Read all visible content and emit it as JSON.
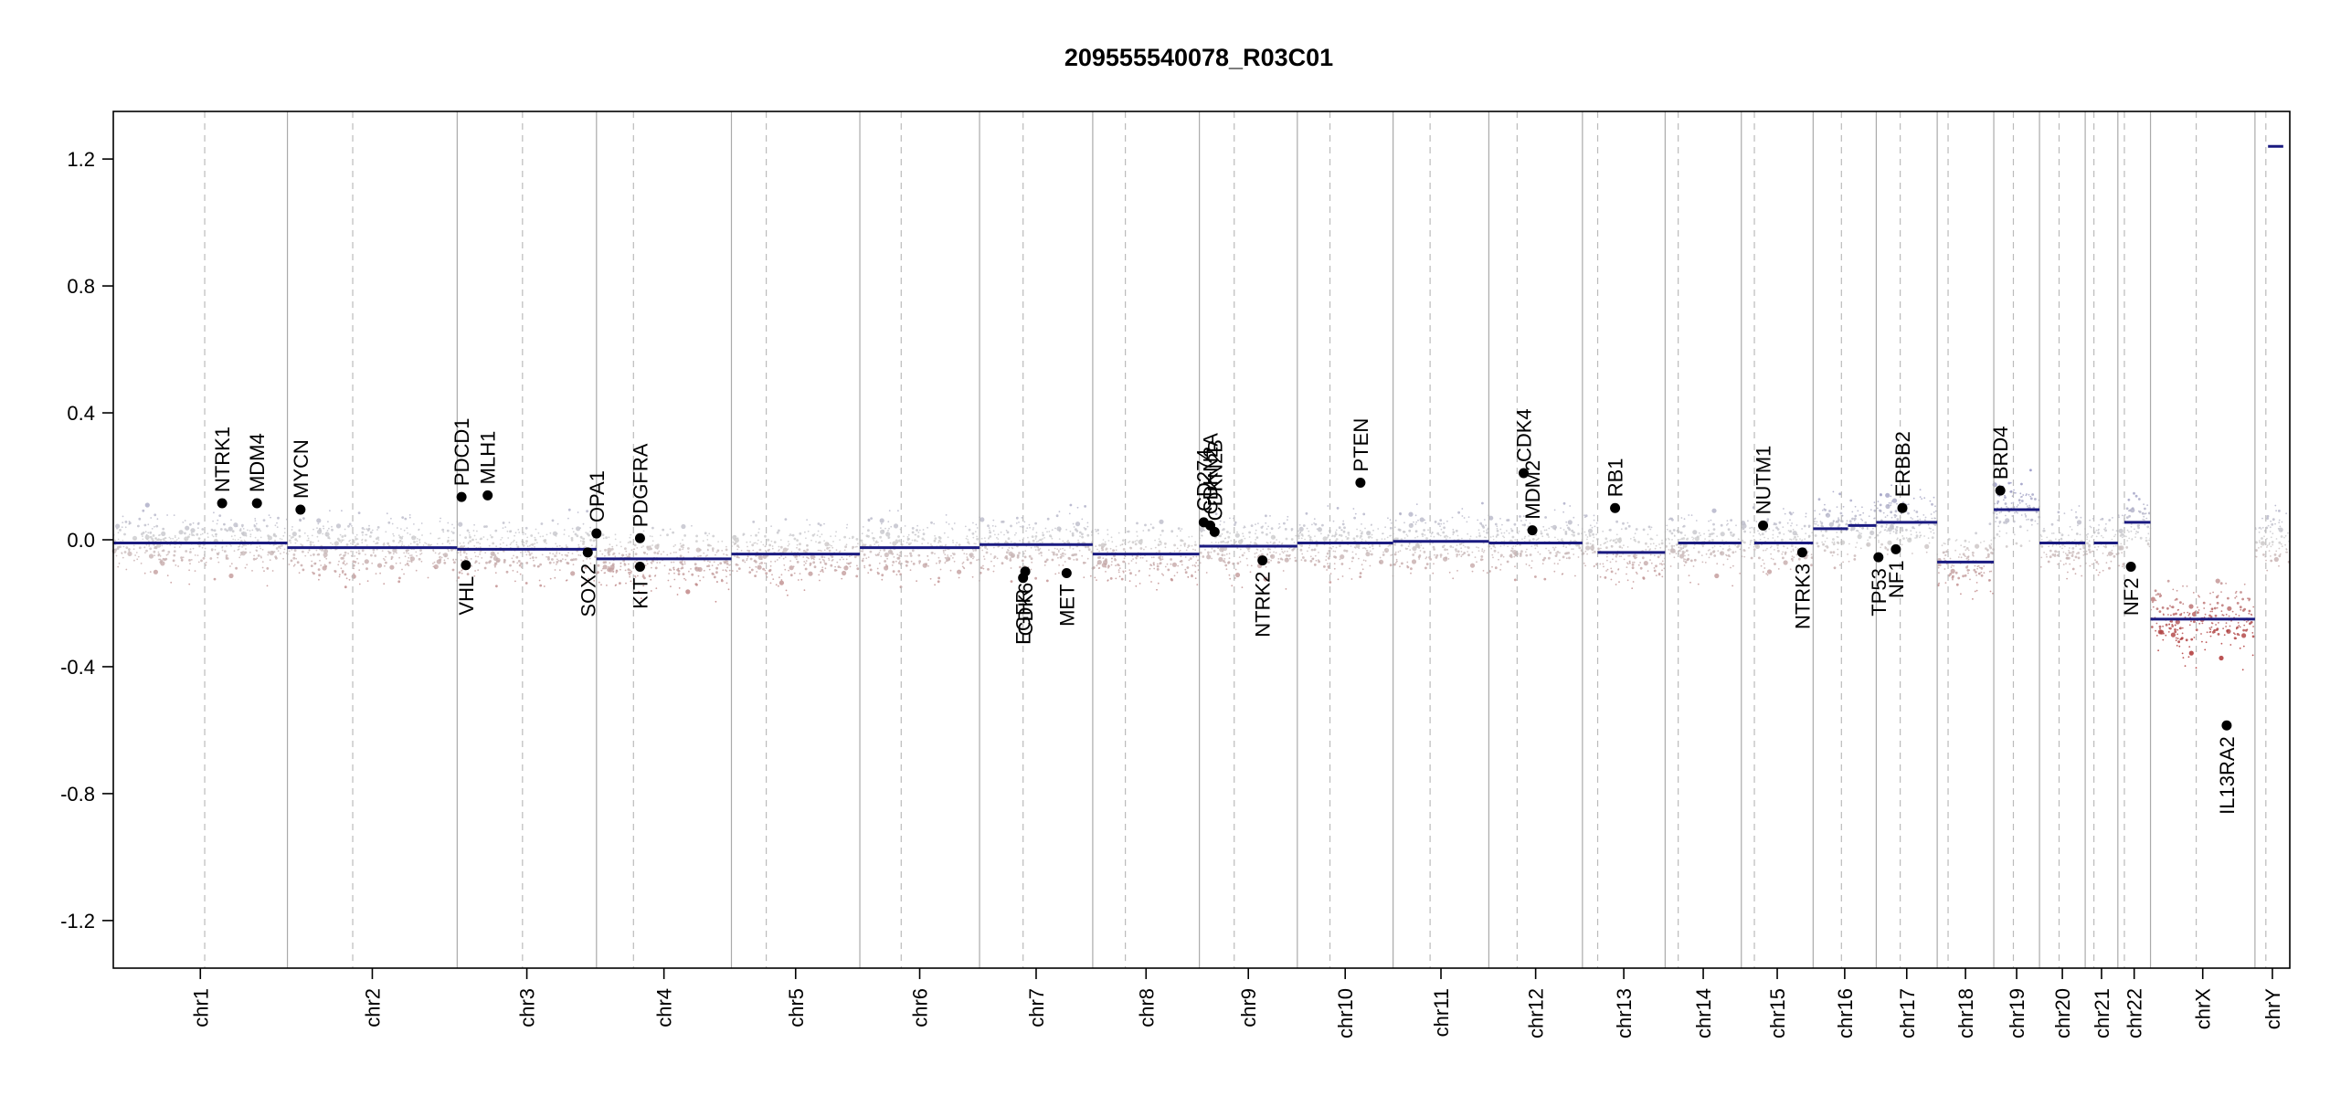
{
  "chart_data": {
    "type": "scatter",
    "title": "209555540078_R03C01",
    "xlabel": "",
    "ylabel": "",
    "ylim": [
      -1.35,
      1.35
    ],
    "y_ticks": [
      -1.2,
      -0.8,
      -0.4,
      0.0,
      0.4,
      0.8,
      1.2
    ],
    "y_tick_labels": [
      "-1.2",
      "-0.8",
      "-0.4",
      "0.0",
      "0.4",
      "0.8",
      "1.2"
    ],
    "grid": "vertical chromosome boundaries (solid) and centromeres (dashed)",
    "chromosomes": [
      {
        "name": "chr1",
        "start": 0.0,
        "end": 0.08,
        "centromere": 0.042,
        "segments": [
          {
            "x0": 0.0,
            "x1": 0.08,
            "y": -0.01
          }
        ]
      },
      {
        "name": "chr2",
        "start": 0.08,
        "end": 0.158,
        "centromere": 0.11,
        "segments": [
          {
            "x0": 0.08,
            "x1": 0.158,
            "y": -0.025
          }
        ]
      },
      {
        "name": "chr3",
        "start": 0.158,
        "end": 0.222,
        "centromere": 0.188,
        "segments": [
          {
            "x0": 0.158,
            "x1": 0.222,
            "y": -0.03
          }
        ]
      },
      {
        "name": "chr4",
        "start": 0.222,
        "end": 0.284,
        "centromere": 0.239,
        "segments": [
          {
            "x0": 0.222,
            "x1": 0.284,
            "y": -0.06
          }
        ]
      },
      {
        "name": "chr5",
        "start": 0.284,
        "end": 0.343,
        "centromere": 0.3,
        "segments": [
          {
            "x0": 0.284,
            "x1": 0.343,
            "y": -0.045
          }
        ]
      },
      {
        "name": "chr6",
        "start": 0.343,
        "end": 0.398,
        "centromere": 0.362,
        "segments": [
          {
            "x0": 0.343,
            "x1": 0.398,
            "y": -0.025
          }
        ]
      },
      {
        "name": "chr7",
        "start": 0.398,
        "end": 0.45,
        "centromere": 0.418,
        "segments": [
          {
            "x0": 0.398,
            "x1": 0.45,
            "y": -0.015
          }
        ]
      },
      {
        "name": "chr8",
        "start": 0.45,
        "end": 0.499,
        "centromere": 0.465,
        "segments": [
          {
            "x0": 0.45,
            "x1": 0.499,
            "y": -0.045
          }
        ]
      },
      {
        "name": "chr9",
        "start": 0.499,
        "end": 0.544,
        "centromere": 0.515,
        "segments": [
          {
            "x0": 0.499,
            "x1": 0.544,
            "y": -0.02
          }
        ]
      },
      {
        "name": "chr10",
        "start": 0.544,
        "end": 0.588,
        "centromere": 0.559,
        "segments": [
          {
            "x0": 0.544,
            "x1": 0.588,
            "y": -0.01
          }
        ]
      },
      {
        "name": "chr11",
        "start": 0.588,
        "end": 0.632,
        "centromere": 0.605,
        "segments": [
          {
            "x0": 0.588,
            "x1": 0.632,
            "y": -0.005
          }
        ]
      },
      {
        "name": "chr12",
        "start": 0.632,
        "end": 0.675,
        "centromere": 0.645,
        "segments": [
          {
            "x0": 0.632,
            "x1": 0.675,
            "y": -0.01
          }
        ]
      },
      {
        "name": "chr13",
        "start": 0.675,
        "end": 0.713,
        "centromere": 0.682,
        "segments": [
          {
            "x0": 0.682,
            "x1": 0.713,
            "y": -0.04
          }
        ]
      },
      {
        "name": "chr14",
        "start": 0.713,
        "end": 0.748,
        "centromere": 0.719,
        "segments": [
          {
            "x0": 0.719,
            "x1": 0.748,
            "y": -0.01
          }
        ]
      },
      {
        "name": "chr15",
        "start": 0.748,
        "end": 0.781,
        "centromere": 0.754,
        "segments": [
          {
            "x0": 0.754,
            "x1": 0.781,
            "y": -0.01
          }
        ]
      },
      {
        "name": "chr16",
        "start": 0.781,
        "end": 0.81,
        "centromere": 0.794,
        "segments": [
          {
            "x0": 0.781,
            "x1": 0.797,
            "y": 0.035
          },
          {
            "x0": 0.797,
            "x1": 0.81,
            "y": 0.045
          }
        ]
      },
      {
        "name": "chr17",
        "start": 0.81,
        "end": 0.838,
        "centromere": 0.821,
        "segments": [
          {
            "x0": 0.81,
            "x1": 0.838,
            "y": 0.055
          }
        ]
      },
      {
        "name": "chr18",
        "start": 0.838,
        "end": 0.864,
        "centromere": 0.843,
        "segments": [
          {
            "x0": 0.838,
            "x1": 0.864,
            "y": -0.07
          }
        ]
      },
      {
        "name": "chr19",
        "start": 0.864,
        "end": 0.885,
        "centromere": 0.873,
        "segments": [
          {
            "x0": 0.864,
            "x1": 0.885,
            "y": 0.095
          }
        ]
      },
      {
        "name": "chr20",
        "start": 0.885,
        "end": 0.906,
        "centromere": 0.894,
        "segments": [
          {
            "x0": 0.885,
            "x1": 0.906,
            "y": -0.01
          }
        ]
      },
      {
        "name": "chr21",
        "start": 0.906,
        "end": 0.921,
        "centromere": 0.91,
        "segments": [
          {
            "x0": 0.91,
            "x1": 0.921,
            "y": -0.01
          }
        ]
      },
      {
        "name": "chr22",
        "start": 0.921,
        "end": 0.936,
        "centromere": 0.924,
        "segments": [
          {
            "x0": 0.924,
            "x1": 0.936,
            "y": 0.055
          }
        ]
      },
      {
        "name": "chrX",
        "start": 0.936,
        "end": 0.984,
        "centromere": 0.957,
        "segments": [
          {
            "x0": 0.936,
            "x1": 0.984,
            "y": -0.25
          }
        ]
      },
      {
        "name": "chrY",
        "start": 0.984,
        "end": 1.0,
        "centromere": 0.989,
        "segments": [
          {
            "x0": 0.99,
            "x1": 0.997,
            "y": 1.24
          }
        ]
      }
    ],
    "genes": [
      {
        "name": "NTRK1",
        "x": 0.05,
        "y": 0.115
      },
      {
        "name": "MDM4",
        "x": 0.066,
        "y": 0.115
      },
      {
        "name": "MYCN",
        "x": 0.086,
        "y": 0.095
      },
      {
        "name": "PDCD1",
        "x": 0.16,
        "y": 0.135
      },
      {
        "name": "VHL",
        "x": 0.162,
        "y": -0.08
      },
      {
        "name": "MLH1",
        "x": 0.172,
        "y": 0.14
      },
      {
        "name": "SOX2",
        "x": 0.218,
        "y": -0.04
      },
      {
        "name": "OPA1",
        "x": 0.222,
        "y": 0.02
      },
      {
        "name": "PDGFRA",
        "x": 0.242,
        "y": 0.005
      },
      {
        "name": "KIT",
        "x": 0.242,
        "y": -0.085
      },
      {
        "name": "EGFR",
        "x": 0.418,
        "y": -0.12
      },
      {
        "name": "CDK6",
        "x": 0.419,
        "y": -0.1
      },
      {
        "name": "MET",
        "x": 0.438,
        "y": -0.105
      },
      {
        "name": "CD274",
        "x": 0.501,
        "y": 0.055
      },
      {
        "name": "CDKN2A",
        "x": 0.504,
        "y": 0.045
      },
      {
        "name": "CDKN2B",
        "x": 0.506,
        "y": 0.025
      },
      {
        "name": "NTRK2",
        "x": 0.528,
        "y": -0.065
      },
      {
        "name": "PTEN",
        "x": 0.573,
        "y": 0.18
      },
      {
        "name": "CDK4",
        "x": 0.648,
        "y": 0.21
      },
      {
        "name": "MDM2",
        "x": 0.652,
        "y": 0.03
      },
      {
        "name": "RB1",
        "x": 0.69,
        "y": 0.1
      },
      {
        "name": "NUTM1",
        "x": 0.758,
        "y": 0.045
      },
      {
        "name": "NTRK3",
        "x": 0.776,
        "y": -0.04
      },
      {
        "name": "TP53",
        "x": 0.811,
        "y": -0.055
      },
      {
        "name": "NF1",
        "x": 0.819,
        "y": -0.03
      },
      {
        "name": "ERBB2",
        "x": 0.822,
        "y": 0.1
      },
      {
        "name": "BRD4",
        "x": 0.867,
        "y": 0.155
      },
      {
        "name": "NF2",
        "x": 0.927,
        "y": -0.085
      },
      {
        "name": "IL13RA2",
        "x": 0.971,
        "y": -0.585
      }
    ],
    "colors": {
      "segment": "#1a1a80",
      "gain_points": "#8080c0",
      "loss_points": "#b03030",
      "neutral_points": "#c8c8c8",
      "boundary": "#aaaaaa"
    }
  }
}
